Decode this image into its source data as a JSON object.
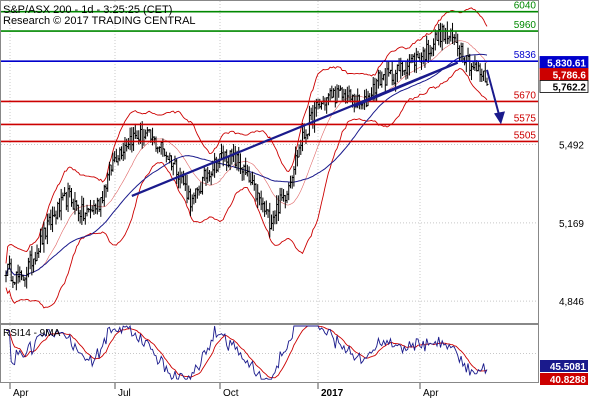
{
  "header": {
    "title": "S&P/ASX 200 - 1d - 3:25:25 (CET)",
    "subtitle": "Research © 2017 TRADING CENTRAL"
  },
  "colors": {
    "support": "#cc0000",
    "resistance": "#008800",
    "pivot": "#0000cc",
    "trend": "#1a1a8c",
    "price": "#000000",
    "bollinger": "#cc0000",
    "ma": "#1a1a8c",
    "rsi": "#1a1a8c",
    "rsi_ma": "#cc0000",
    "grid": "#c8c8c8",
    "last_price_bg": "#ffffff",
    "rsi_bg": "#1a1a8c",
    "rsi_ma_bg": "#cc0000"
  },
  "chart_data": [
    {
      "type": "candlestick",
      "title": "S&P/ASX 200 - 1d - 3:25:25 (CET)",
      "yticks": [
        4846,
        5169,
        5492
      ],
      "ylim": [
        4760,
        6080
      ],
      "x_ticks": [
        "Apr",
        "Jul",
        "Oct",
        "2017",
        "Apr"
      ],
      "grid": true,
      "levels": [
        {
          "label": "6040",
          "value": 6040,
          "kind": "resistance"
        },
        {
          "label": "5960",
          "value": 5960,
          "kind": "resistance"
        },
        {
          "label": "5836",
          "value": 5836,
          "kind": "pivot"
        },
        {
          "label": "5670",
          "value": 5670,
          "kind": "support"
        },
        {
          "label": "5575",
          "value": 5575,
          "kind": "support"
        },
        {
          "label": "5505",
          "value": 5505,
          "kind": "support"
        }
      ],
      "price_tags": [
        {
          "label": "5,830.61",
          "value": 5830.61
        },
        {
          "label": "5,786.6",
          "value": 5786.6
        },
        {
          "label": "5,762.2",
          "value": 5762.2
        }
      ],
      "close_series": [
        {
          "month": "Apr",
          "close": 4980
        },
        {
          "month": "Apr",
          "close": 4930
        },
        {
          "month": "May",
          "close": 5060
        },
        {
          "month": "May",
          "close": 5190
        },
        {
          "month": "Jun",
          "close": 5280
        },
        {
          "month": "Jun",
          "close": 5200
        },
        {
          "month": "Jun",
          "close": 5250
        },
        {
          "month": "Jul",
          "close": 5440
        },
        {
          "month": "Jul",
          "close": 5520
        },
        {
          "month": "Aug",
          "close": 5530
        },
        {
          "month": "Aug",
          "close": 5480
        },
        {
          "month": "Aug",
          "close": 5400
        },
        {
          "month": "Sep",
          "close": 5250
        },
        {
          "month": "Sep",
          "close": 5380
        },
        {
          "month": "Oct",
          "close": 5450
        },
        {
          "month": "Oct",
          "close": 5420
        },
        {
          "month": "Oct",
          "close": 5300
        },
        {
          "month": "Nov",
          "close": 5180
        },
        {
          "month": "Nov",
          "close": 5290
        },
        {
          "month": "Dec",
          "close": 5500
        },
        {
          "month": "Dec",
          "close": 5640
        },
        {
          "month": "Jan",
          "close": 5700
        },
        {
          "month": "Jan",
          "close": 5690
        },
        {
          "month": "Feb",
          "close": 5650
        },
        {
          "month": "Feb",
          "close": 5760
        },
        {
          "month": "Mar",
          "close": 5780
        },
        {
          "month": "Mar",
          "close": 5830
        },
        {
          "month": "Apr",
          "close": 5870
        },
        {
          "month": "Apr",
          "close": 5950
        },
        {
          "month": "May",
          "close": 5920
        },
        {
          "month": "May",
          "close": 5820
        },
        {
          "month": "May",
          "close": 5760
        }
      ]
    },
    {
      "type": "line",
      "title": "RSI14 - 9MA",
      "series": [
        {
          "name": "RSI14",
          "last": "45.5081"
        },
        {
          "name": "9MA",
          "last": "40.8288"
        }
      ]
    }
  ]
}
